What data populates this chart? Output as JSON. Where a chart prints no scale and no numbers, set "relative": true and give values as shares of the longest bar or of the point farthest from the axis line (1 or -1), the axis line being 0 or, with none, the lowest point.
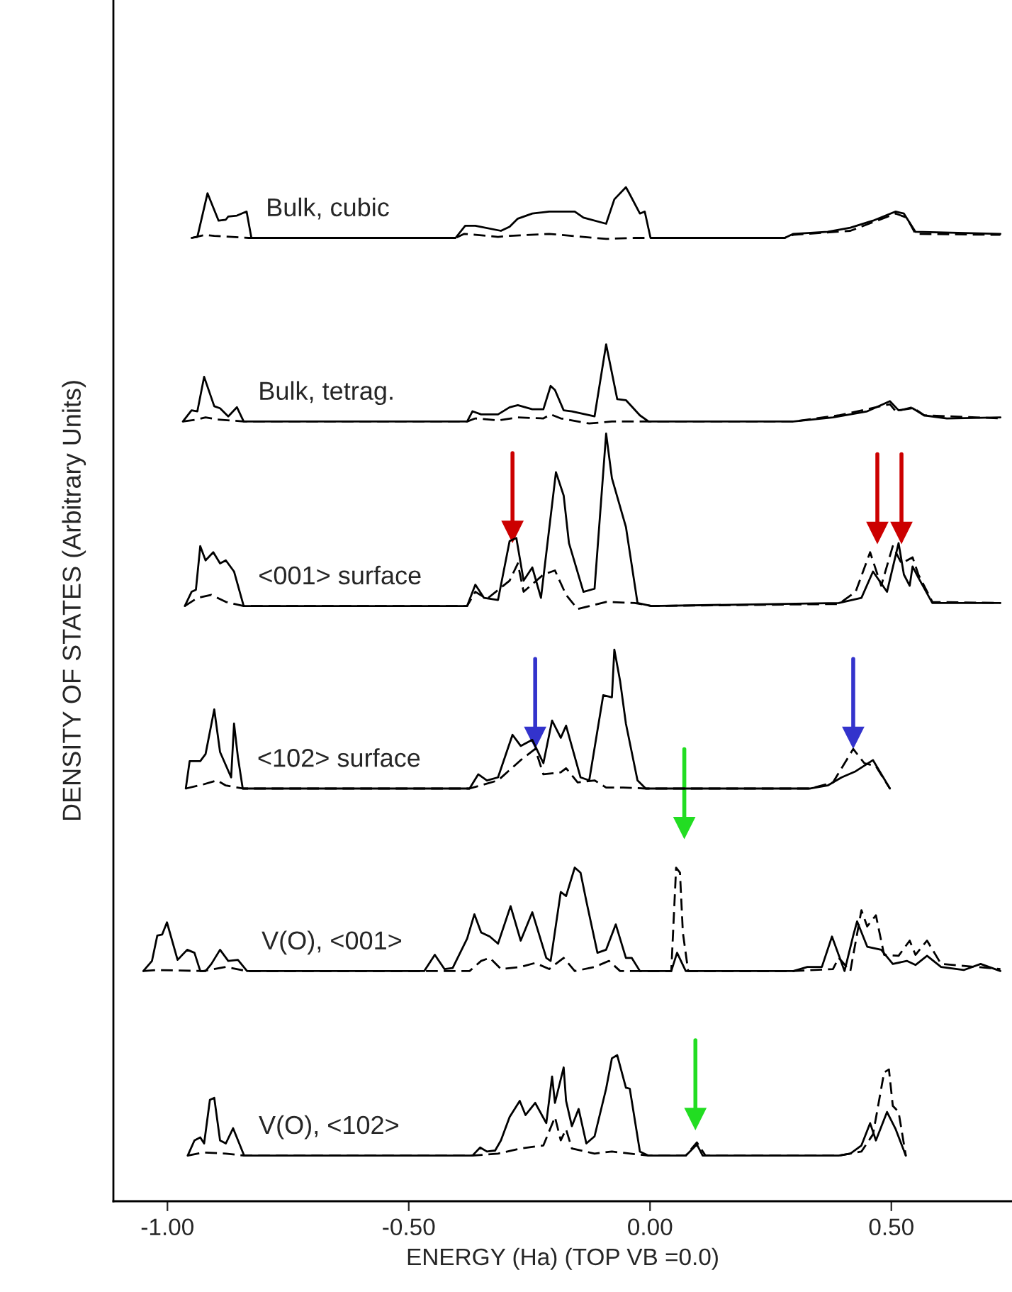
{
  "chart_data": {
    "type": "line",
    "relative": true,
    "xlabel": "ENERGY (Ha) (TOP VB =0.0)",
    "ylabel": "DENSITY OF STATES (Arbitrary Units)",
    "xlim": [
      -1.112,
      0.75
    ],
    "xticks": [
      {
        "value": -1.0,
        "label": "-1.00"
      },
      {
        "value": -0.5,
        "label": "-0.50"
      },
      {
        "value": 0.0,
        "label": "0.00"
      },
      {
        "value": 0.5,
        "label": "0.50"
      }
    ],
    "series": [
      {
        "name": "Bulk, cubic",
        "color": "#000000",
        "line_style": "solid",
        "x": [
          -0.95,
          -0.938,
          -0.917,
          -0.894,
          -0.879,
          -0.874,
          -0.856,
          -0.836,
          -0.826,
          -0.403,
          -0.383,
          -0.362,
          -0.309,
          -0.291,
          -0.274,
          -0.244,
          -0.209,
          -0.156,
          -0.138,
          -0.091,
          -0.074,
          -0.05,
          -0.042,
          -0.021,
          -0.011,
          0.001,
          0.279,
          0.297,
          0.368,
          0.415,
          0.462,
          0.509,
          0.526,
          0.55,
          0.726
        ],
        "values": [
          0.95,
          0.951,
          0.994,
          0.967,
          0.968,
          0.971,
          0.972,
          0.976,
          0.95,
          0.95,
          0.962,
          0.962,
          0.957,
          0.961,
          0.969,
          0.974,
          0.976,
          0.976,
          0.97,
          0.964,
          0.988,
          1.0,
          0.993,
          0.974,
          0.976,
          0.95,
          0.95,
          0.954,
          0.956,
          0.96,
          0.967,
          0.976,
          0.974,
          0.956,
          0.954
        ]
      },
      {
        "color": "#000000",
        "line_style": "dashed",
        "x": [
          -0.95,
          -0.921,
          -0.903,
          -0.832,
          -0.403,
          -0.385,
          -0.315,
          -0.291,
          -0.209,
          -0.138,
          -0.091,
          -0.032,
          -0.003,
          0.279,
          0.297,
          0.415,
          0.509,
          0.532,
          0.55,
          0.726
        ],
        "values": [
          0.95,
          0.953,
          0.952,
          0.95,
          0.95,
          0.954,
          0.951,
          0.952,
          0.954,
          0.951,
          0.949,
          0.95,
          0.95,
          0.95,
          0.953,
          0.957,
          0.974,
          0.97,
          0.954,
          0.953
        ]
      },
      {
        "name": "Bulk, tetrag.",
        "color": "#000000",
        "line_style": "solid",
        "x": [
          -0.968,
          -0.95,
          -0.938,
          -0.924,
          -0.903,
          -0.891,
          -0.874,
          -0.856,
          -0.842,
          -0.379,
          -0.368,
          -0.35,
          -0.315,
          -0.291,
          -0.274,
          -0.244,
          -0.221,
          -0.206,
          -0.197,
          -0.179,
          -0.162,
          -0.115,
          -0.091,
          -0.068,
          -0.05,
          -0.021,
          -0.003,
          0.297,
          0.379,
          0.45,
          0.497,
          0.515,
          0.544,
          0.568,
          0.615,
          0.726
        ],
        "values": [
          0.769,
          0.78,
          0.779,
          0.813,
          0.784,
          0.782,
          0.774,
          0.783,
          0.769,
          0.769,
          0.779,
          0.776,
          0.776,
          0.783,
          0.785,
          0.781,
          0.781,
          0.804,
          0.8,
          0.78,
          0.779,
          0.774,
          0.845,
          0.791,
          0.79,
          0.775,
          0.769,
          0.769,
          0.773,
          0.779,
          0.789,
          0.78,
          0.782,
          0.775,
          0.772,
          0.773
        ]
      },
      {
        "color": "#000000",
        "line_style": "dashed",
        "x": [
          -0.968,
          -0.938,
          -0.921,
          -0.897,
          -0.842,
          -0.379,
          -0.362,
          -0.315,
          -0.274,
          -0.221,
          -0.206,
          -0.185,
          -0.126,
          -0.079,
          -0.003,
          0.297,
          0.391,
          0.497,
          0.509,
          0.544,
          0.568,
          0.726
        ],
        "values": [
          0.769,
          0.771,
          0.773,
          0.771,
          0.769,
          0.769,
          0.772,
          0.77,
          0.773,
          0.772,
          0.776,
          0.772,
          0.767,
          0.769,
          0.769,
          0.769,
          0.775,
          0.786,
          0.779,
          0.783,
          0.775,
          0.772
        ]
      },
      {
        "name": "<001> surface",
        "color": "#000000",
        "line_style": "solid",
        "x": [
          -0.964,
          -0.95,
          -0.941,
          -0.932,
          -0.921,
          -0.905,
          -0.891,
          -0.879,
          -0.862,
          -0.842,
          -0.379,
          -0.362,
          -0.344,
          -0.315,
          -0.291,
          -0.277,
          -0.262,
          -0.244,
          -0.226,
          -0.195,
          -0.179,
          -0.168,
          -0.138,
          -0.115,
          -0.091,
          -0.079,
          -0.05,
          -0.026,
          0.003,
          0.391,
          0.438,
          0.462,
          0.491,
          0.515,
          0.526,
          0.538,
          0.544,
          0.556,
          0.585,
          0.726
        ],
        "values": [
          0.587,
          0.601,
          0.603,
          0.646,
          0.632,
          0.64,
          0.629,
          0.632,
          0.621,
          0.587,
          0.587,
          0.608,
          0.595,
          0.593,
          0.651,
          0.654,
          0.612,
          0.625,
          0.595,
          0.719,
          0.696,
          0.649,
          0.601,
          0.604,
          0.757,
          0.713,
          0.665,
          0.59,
          0.587,
          0.59,
          0.595,
          0.621,
          0.601,
          0.649,
          0.618,
          0.607,
          0.626,
          0.615,
          0.59,
          0.59
        ]
      },
      {
        "color": "#000000",
        "line_style": "dashed",
        "x": [
          -0.964,
          -0.938,
          -0.909,
          -0.879,
          -0.842,
          -0.379,
          -0.362,
          -0.338,
          -0.291,
          -0.274,
          -0.262,
          -0.221,
          -0.197,
          -0.174,
          -0.15,
          -0.091,
          -0.032,
          0.003,
          0.391,
          0.426,
          0.456,
          0.479,
          0.503,
          0.521,
          0.544,
          0.556,
          0.585,
          0.726
        ],
        "values": [
          0.587,
          0.595,
          0.598,
          0.591,
          0.587,
          0.587,
          0.601,
          0.594,
          0.612,
          0.629,
          0.601,
          0.618,
          0.622,
          0.598,
          0.584,
          0.591,
          0.59,
          0.587,
          0.589,
          0.601,
          0.64,
          0.607,
          0.646,
          0.629,
          0.635,
          0.618,
          0.591,
          0.59
        ]
      },
      {
        "name": "<102> surface",
        "color": "#000000",
        "line_style": "solid",
        "x": [
          -0.962,
          -0.954,
          -0.932,
          -0.921,
          -0.903,
          -0.891,
          -0.868,
          -0.862,
          -0.854,
          -0.844,
          -0.374,
          -0.356,
          -0.338,
          -0.315,
          -0.285,
          -0.268,
          -0.244,
          -0.221,
          -0.203,
          -0.185,
          -0.174,
          -0.144,
          -0.126,
          -0.097,
          -0.079,
          -0.074,
          -0.062,
          -0.05,
          -0.026,
          -0.009,
          0.332,
          0.368,
          0.397,
          0.426,
          0.462,
          0.497
        ],
        "values": [
          0.407,
          0.434,
          0.434,
          0.441,
          0.485,
          0.443,
          0.418,
          0.471,
          0.438,
          0.407,
          0.407,
          0.421,
          0.415,
          0.418,
          0.46,
          0.449,
          0.455,
          0.432,
          0.474,
          0.457,
          0.469,
          0.418,
          0.415,
          0.499,
          0.497,
          0.544,
          0.513,
          0.471,
          0.415,
          0.407,
          0.407,
          0.41,
          0.418,
          0.424,
          0.435,
          0.407
        ]
      },
      {
        "color": "#000000",
        "line_style": "dashed",
        "x": [
          -0.962,
          -0.926,
          -0.897,
          -0.879,
          -0.844,
          -0.374,
          -0.315,
          -0.268,
          -0.238,
          -0.221,
          -0.185,
          -0.174,
          -0.15,
          -0.115,
          -0.091,
          -0.056,
          -0.009,
          0.332,
          0.379,
          0.421,
          0.444,
          0.468,
          0.497
        ],
        "values": [
          0.407,
          0.411,
          0.415,
          0.41,
          0.407,
          0.407,
          0.415,
          0.435,
          0.446,
          0.421,
          0.423,
          0.427,
          0.413,
          0.415,
          0.408,
          0.408,
          0.407,
          0.407,
          0.413,
          0.446,
          0.432,
          0.429,
          0.407
        ]
      },
      {
        "name": "V(O), <001>",
        "color": "#000000",
        "line_style": "solid",
        "x": [
          -1.05,
          -1.032,
          -1.021,
          -1.011,
          -1.001,
          -0.979,
          -0.959,
          -0.944,
          -0.932,
          -0.921,
          -0.909,
          -0.891,
          -0.874,
          -0.854,
          -0.835,
          -0.468,
          -0.446,
          -0.426,
          -0.409,
          -0.379,
          -0.364,
          -0.35,
          -0.332,
          -0.315,
          -0.289,
          -0.268,
          -0.244,
          -0.215,
          -0.206,
          -0.185,
          -0.174,
          -0.156,
          -0.144,
          -0.132,
          -0.109,
          -0.091,
          -0.071,
          -0.05,
          -0.038,
          -0.021,
          0.044,
          0.056,
          0.074,
          0.297,
          0.326,
          0.356,
          0.377,
          0.403,
          0.421,
          0.429,
          0.45,
          0.479,
          0.503,
          0.532,
          0.55,
          0.574,
          0.603,
          0.65,
          0.685,
          0.726
        ],
        "values": [
          0.227,
          0.237,
          0.262,
          0.263,
          0.275,
          0.238,
          0.248,
          0.245,
          0.227,
          0.227,
          0.234,
          0.248,
          0.237,
          0.238,
          0.227,
          0.227,
          0.243,
          0.229,
          0.23,
          0.259,
          0.283,
          0.265,
          0.261,
          0.254,
          0.291,
          0.257,
          0.285,
          0.24,
          0.237,
          0.305,
          0.301,
          0.329,
          0.324,
          0.296,
          0.245,
          0.248,
          0.273,
          0.24,
          0.24,
          0.227,
          0.227,
          0.245,
          0.227,
          0.227,
          0.231,
          0.231,
          0.261,
          0.227,
          0.262,
          0.276,
          0.251,
          0.248,
          0.234,
          0.237,
          0.233,
          0.242,
          0.231,
          0.228,
          0.234,
          0.227
        ]
      },
      {
        "color": "#000000",
        "line_style": "dashed",
        "x": [
          -1.05,
          -1.021,
          -0.926,
          -0.879,
          -0.835,
          -0.374,
          -0.35,
          -0.332,
          -0.309,
          -0.268,
          -0.238,
          -0.209,
          -0.179,
          -0.156,
          -0.115,
          -0.085,
          -0.062,
          0.044,
          0.054,
          0.062,
          0.068,
          0.079,
          0.297,
          0.379,
          0.391,
          0.415,
          0.438,
          0.45,
          0.468,
          0.485,
          0.515,
          0.538,
          0.55,
          0.574,
          0.603,
          0.726
        ],
        "values": [
          0.227,
          0.228,
          0.227,
          0.231,
          0.227,
          0.227,
          0.237,
          0.24,
          0.229,
          0.231,
          0.235,
          0.229,
          0.24,
          0.227,
          0.231,
          0.237,
          0.227,
          0.227,
          0.329,
          0.324,
          0.265,
          0.227,
          0.227,
          0.229,
          0.24,
          0.227,
          0.287,
          0.271,
          0.282,
          0.243,
          0.242,
          0.257,
          0.243,
          0.257,
          0.234,
          0.229
        ]
      },
      {
        "name": "V(O), <102>",
        "color": "#000000",
        "line_style": "solid",
        "x": [
          -0.958,
          -0.944,
          -0.932,
          -0.924,
          -0.912,
          -0.903,
          -0.891,
          -0.879,
          -0.864,
          -0.841,
          -0.368,
          -0.352,
          -0.338,
          -0.321,
          -0.309,
          -0.291,
          -0.27,
          -0.258,
          -0.238,
          -0.215,
          -0.203,
          -0.197,
          -0.179,
          -0.174,
          -0.162,
          -0.148,
          -0.132,
          -0.115,
          -0.091,
          -0.079,
          -0.068,
          -0.05,
          -0.042,
          -0.021,
          -0.003,
          0.074,
          0.097,
          0.109,
          0.391,
          0.415,
          0.438,
          0.456,
          0.468,
          0.491,
          0.509,
          0.53
        ],
        "values": [
          0.045,
          0.06,
          0.063,
          0.057,
          0.1,
          0.102,
          0.06,
          0.057,
          0.072,
          0.045,
          0.045,
          0.053,
          0.049,
          0.05,
          0.06,
          0.083,
          0.099,
          0.085,
          0.097,
          0.077,
          0.123,
          0.097,
          0.132,
          0.099,
          0.074,
          0.091,
          0.057,
          0.064,
          0.111,
          0.141,
          0.144,
          0.112,
          0.111,
          0.049,
          0.045,
          0.045,
          0.056,
          0.045,
          0.045,
          0.047,
          0.055,
          0.077,
          0.06,
          0.088,
          0.071,
          0.045
        ]
      },
      {
        "color": "#000000",
        "line_style": "dashed",
        "x": [
          -0.958,
          -0.926,
          -0.879,
          -0.841,
          -0.368,
          -0.315,
          -0.268,
          -0.221,
          -0.197,
          -0.185,
          -0.174,
          -0.162,
          -0.115,
          -0.079,
          -0.003,
          0.074,
          0.097,
          0.115,
          0.391,
          0.438,
          0.462,
          0.485,
          0.495,
          0.503,
          0.515,
          0.53
        ],
        "values": [
          0.045,
          0.048,
          0.047,
          0.045,
          0.045,
          0.047,
          0.052,
          0.055,
          0.083,
          0.06,
          0.071,
          0.052,
          0.047,
          0.049,
          0.045,
          0.045,
          0.058,
          0.045,
          0.045,
          0.049,
          0.066,
          0.127,
          0.13,
          0.094,
          0.088,
          0.045
        ]
      },
      {
        "type": "scatter",
        "marker": "triangle",
        "color": "#cc0000",
        "x": [
          -0.285,
          0.471,
          0.521
        ],
        "values": [
          0.66,
          0.659,
          0.659
        ]
      },
      {
        "type": "scatter",
        "marker": "triangle",
        "color": "#3333cc",
        "x": [
          -0.238,
          0.421
        ],
        "values": [
          0.457,
          0.457
        ]
      },
      {
        "type": "scatter",
        "marker": "triangle",
        "color": "#22dd22",
        "x": [
          0.071,
          0.094
        ],
        "values": [
          0.368,
          0.081
        ]
      }
    ]
  }
}
